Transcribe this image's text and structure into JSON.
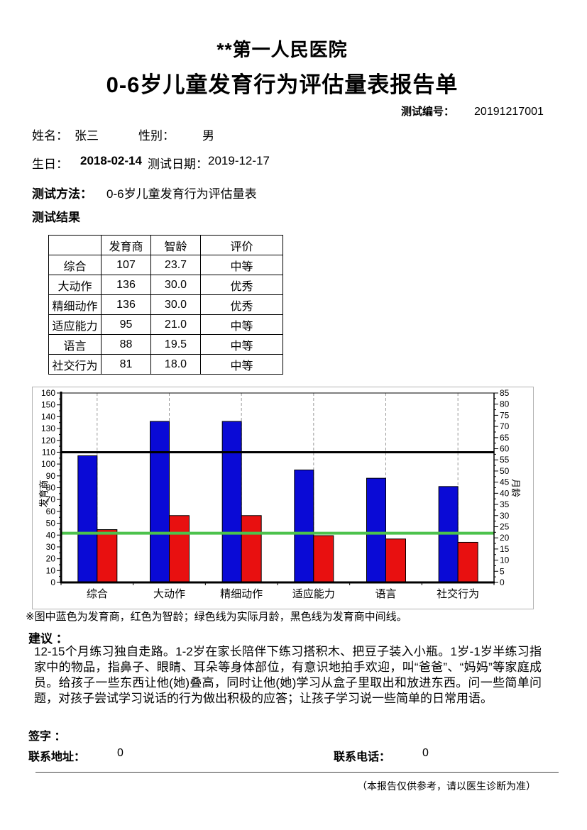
{
  "header": {
    "hospital": "**第一人民医院",
    "report_title": "0-6岁儿童发育行为评估量表报告单",
    "test_no_label": "测试编号：",
    "test_no": "20191217001"
  },
  "patient": {
    "name_label": "姓名：",
    "name": "张三",
    "gender_label": "性别：",
    "gender": "男",
    "birth_label": "生日：",
    "birth": "2018-02-14",
    "test_date_label": "测试日期：",
    "test_date": "2019-12-17",
    "method_label": "测试方法：",
    "method": "0-6岁儿童发育行为评估量表",
    "results_heading": "测试结果"
  },
  "results_table": {
    "headers": [
      "",
      "发育商",
      "智龄",
      "评价"
    ],
    "rows": [
      [
        "综合",
        "107",
        "23.7",
        "中等"
      ],
      [
        "大动作",
        "136",
        "30.0",
        "优秀"
      ],
      [
        "精细动作",
        "136",
        "30.0",
        "优秀"
      ],
      [
        "适应能力",
        "95",
        "21.0",
        "中等"
      ],
      [
        "语言",
        "88",
        "19.5",
        "中等"
      ],
      [
        "社交行为",
        "81",
        "18.0",
        "中等"
      ]
    ]
  },
  "chart_data": {
    "type": "bar",
    "categories": [
      "综合",
      "大动作",
      "精细动作",
      "适应能力",
      "语言",
      "社交行为"
    ],
    "series": [
      {
        "name": "发育商",
        "axis": "left",
        "color": "#0a0ad6",
        "values": [
          107,
          136,
          136,
          95,
          88,
          81
        ]
      },
      {
        "name": "智龄",
        "axis": "right",
        "color": "#e81010",
        "values": [
          23.7,
          30.0,
          30.0,
          21.0,
          19.5,
          18.0
        ]
      }
    ],
    "left_axis": {
      "label": "发育商",
      "min": 0,
      "max": 160,
      "step": 10
    },
    "right_axis": {
      "label": "月龄",
      "min": 0,
      "max": 85,
      "step": 5
    },
    "reference_lines": [
      {
        "name": "发育商中间线",
        "axis": "left",
        "value": 110,
        "color": "#000000",
        "width": 3
      },
      {
        "name": "实际月龄",
        "axis": "right",
        "value": 22.1,
        "color": "#4cc24c",
        "width": 4
      }
    ],
    "grid": "vertical-dashed",
    "grid_color": "#9a9a9a",
    "bar_border_color": "#000000"
  },
  "chart_note": "※图中蓝色为发育商，红色为智龄；绿色线为实际月龄，黑色线为发育商中间线。",
  "suggestion": {
    "label": "建议 ：",
    "text": "12-15个月练习独自走路。1-2岁在家长陪伴下练习搭积木、把豆子装入小瓶。1岁-1岁半练习指家中的物品，指鼻子、眼睛、耳朵等身体部位，有意识地拍手欢迎，叫“爸爸”、“妈妈”等家庭成员。给孩子一些东西让他(她)叠高，同时让他(她)学习从盒子里取出和放进东西。问一些简单问题，对孩子尝试学习说话的行为做出积极的应答；让孩子学习说一些简单的日常用语。"
  },
  "footer": {
    "sign_label": "签字 ：",
    "address_label": "联系地址：",
    "address": "0",
    "phone_label": "联系电话：",
    "phone": "0",
    "disclaimer": "（本报告仅供参考，请以医生诊断为准）"
  }
}
